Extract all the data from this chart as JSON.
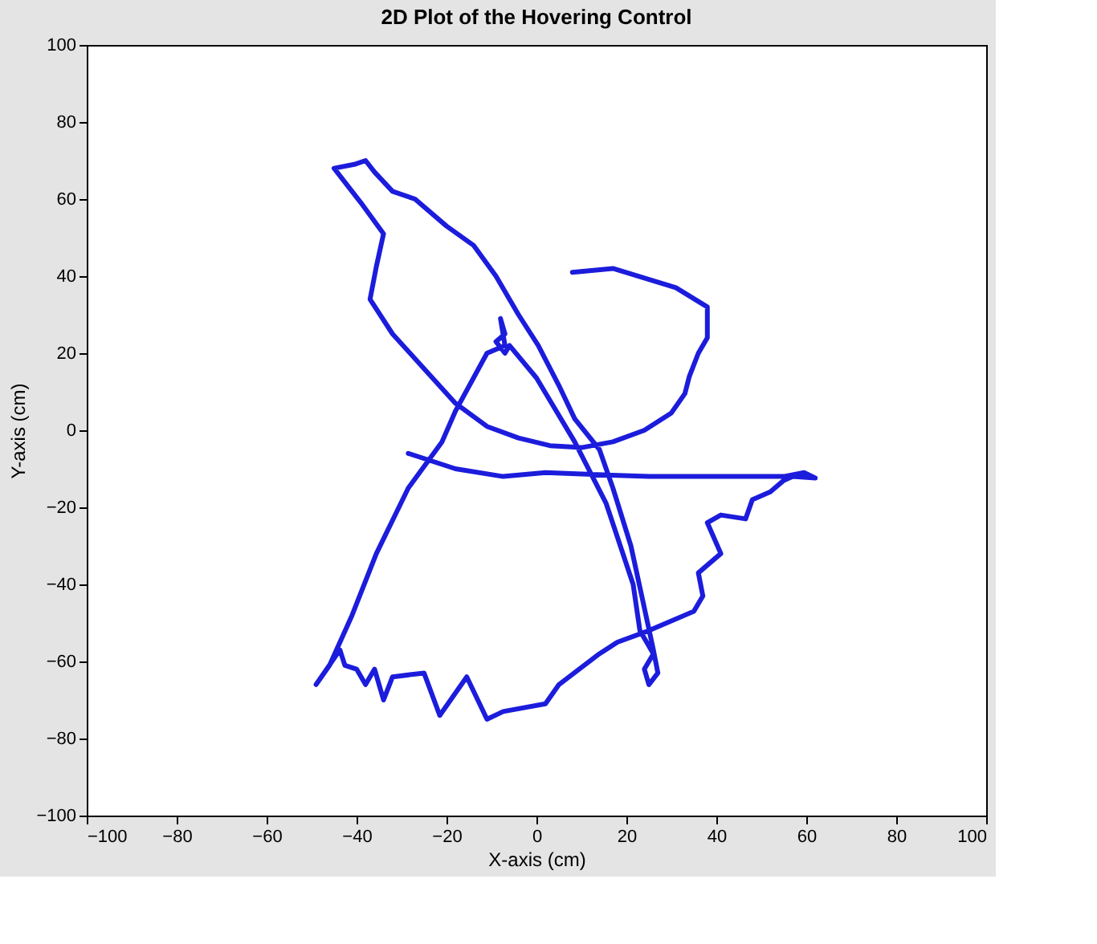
{
  "chart_data": {
    "type": "line",
    "title": "2D Plot of the Hovering Control",
    "xlabel": "X-axis (cm)",
    "ylabel": "Y-axis (cm)",
    "x": [
      8,
      17,
      31,
      38,
      38,
      36,
      34,
      33,
      30,
      24,
      17,
      10,
      3,
      -4,
      -11,
      -18,
      -25,
      -32,
      -37,
      -35.6,
      -34,
      -39,
      -45,
      -40.5,
      -38,
      -36,
      -32,
      -27,
      -20,
      -14,
      -9,
      -4,
      0.4,
      5,
      8.5,
      14,
      17,
      21,
      23.6,
      26,
      27,
      25,
      24,
      26,
      23,
      21.5,
      15.5,
      8.5,
      0,
      -6,
      -7,
      -9,
      -7,
      -8,
      -7,
      -11,
      -18,
      -21,
      -28.5,
      -35.6,
      -41,
      -46,
      -49,
      -43.7,
      -42.6,
      -40,
      -38,
      -36,
      -34,
      -32,
      -25,
      -21.5,
      -15.5,
      -11,
      -7.4,
      2,
      5,
      14,
      18,
      25,
      35,
      37,
      36,
      41,
      38,
      41,
      46.5,
      48,
      52,
      55,
      57,
      62,
      59.5,
      55,
      25,
      2,
      -7.4,
      -18,
      -28.5
    ],
    "values": [
      41,
      42,
      37,
      32,
      24,
      20,
      14,
      9.5,
      4.5,
      0,
      -3,
      -4.5,
      -4,
      -2,
      1,
      7,
      16,
      25,
      34,
      42.5,
      51,
      59,
      68,
      69,
      70,
      67,
      62,
      60,
      53,
      48,
      40,
      30,
      22,
      11.6,
      3,
      -5,
      -15,
      -30,
      -44,
      -57,
      -63,
      -66,
      -62,
      -58,
      -52,
      -40,
      -19,
      -3,
      13.6,
      22,
      20,
      23,
      25,
      29,
      22,
      20,
      5,
      -3,
      -15,
      -32,
      -48,
      -61,
      -66,
      -57,
      -61,
      -62,
      -66,
      -62,
      -70,
      -64,
      -63,
      -74,
      -64,
      -75,
      -73,
      -71,
      -66,
      -58,
      -55,
      -52,
      -47,
      -43,
      -37,
      -32,
      -24,
      -22,
      -23,
      -18,
      -16,
      -13,
      -12,
      -12.4,
      -11,
      -12,
      -12,
      -11,
      -12,
      -10,
      -6
    ],
    "color": "#1c1cdc",
    "xlim": [
      -100,
      100
    ],
    "ylim": [
      -100,
      100
    ],
    "xticks": [
      -100,
      -80,
      -60,
      -40,
      -20,
      0,
      20,
      40,
      60,
      80,
      100
    ],
    "yticks": [
      -100,
      -80,
      -60,
      -40,
      -20,
      0,
      20,
      40,
      60,
      80,
      100
    ],
    "grid": false,
    "marker": "none",
    "line_style": "solid"
  }
}
